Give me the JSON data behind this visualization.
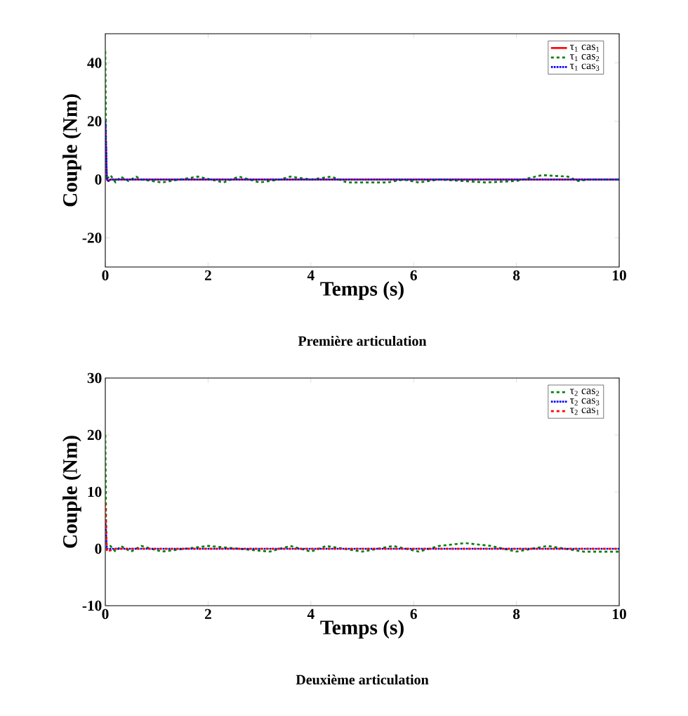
{
  "chart_data": [
    {
      "type": "line",
      "xlabel": "Temps (s)",
      "ylabel": "Couple (Nm)",
      "annotations": [
        "Première articulation"
      ],
      "xlim": [
        0,
        10
      ],
      "ylim": [
        -30,
        50
      ],
      "xticks": [
        0,
        2,
        4,
        6,
        8,
        10
      ],
      "yticks": [
        -20,
        0,
        20,
        40
      ],
      "legend": "top right",
      "grid": false,
      "series": [
        {
          "name": "τ$_{1}$ cas$_{1}$",
          "color": "#ff0000",
          "line_style": "solid",
          "x": [
            0,
            0.03,
            0.06,
            0.1,
            10
          ],
          "values": [
            20,
            0,
            -0.5,
            0,
            0
          ]
        },
        {
          "name": "τ$_{1}$ cas$_{2}$",
          "color": "#008000",
          "line_style": "dashed",
          "x": [
            0,
            0.02,
            0.1,
            0.2,
            0.3,
            0.45,
            0.6,
            0.7,
            1.1,
            1.8,
            2.3,
            2.6,
            3.0,
            3.4,
            3.6,
            4.0,
            4.4,
            4.7,
            5.5,
            5.8,
            6.1,
            6.5,
            7.4,
            8.0,
            8.5,
            9.0,
            9.2,
            9.4,
            10
          ],
          "values": [
            44,
            0,
            1.5,
            -1,
            1,
            -0.5,
            1,
            0,
            -1,
            1,
            -1,
            1,
            -1,
            0,
            1,
            0,
            1,
            -1,
            -1,
            0,
            -1,
            0,
            -1,
            -0.5,
            1.5,
            1,
            -0.5,
            0,
            0
          ]
        },
        {
          "name": "τ$_{1}$ cas$_{3}$",
          "color": "#0000ff",
          "line_style": "dotted",
          "x": [
            0,
            0.03,
            0.06,
            0.1,
            10
          ],
          "values": [
            20,
            0,
            -0.5,
            0,
            0
          ]
        }
      ]
    },
    {
      "type": "line",
      "xlabel": "Temps (s)",
      "ylabel": "Couple (Nm)",
      "annotations": [
        "Deuxième articulation"
      ],
      "xlim": [
        0,
        10
      ],
      "ylim": [
        -10,
        30
      ],
      "xticks": [
        0,
        2,
        4,
        6,
        8,
        10
      ],
      "yticks": [
        -10,
        0,
        10,
        20,
        30
      ],
      "legend": "top right",
      "grid": false,
      "series": [
        {
          "name": "τ$_{2}$ cas$_{2}$",
          "color": "#008000",
          "line_style": "dashed",
          "x": [
            0,
            0.02,
            0.1,
            0.2,
            0.3,
            0.5,
            0.7,
            1.1,
            2.0,
            3.2,
            3.6,
            4.0,
            4.3,
            5.0,
            5.6,
            6.1,
            6.5,
            7.0,
            7.5,
            8.0,
            8.6,
            9.3,
            9.8,
            10
          ],
          "values": [
            20,
            0,
            0.5,
            -0.5,
            0.5,
            -0.5,
            0.5,
            -0.5,
            0.5,
            -0.5,
            0.5,
            -0.5,
            0.5,
            -0.5,
            0.5,
            -0.5,
            0.5,
            1,
            0.5,
            -0.5,
            0.5,
            -0.5,
            -0.5,
            -0.5
          ]
        },
        {
          "name": "τ$_{2}$ cas$_{3}$",
          "color": "#0000ff",
          "line_style": "dotted",
          "x": [
            0,
            0.03,
            10
          ],
          "values": [
            5,
            0,
            0
          ]
        },
        {
          "name": "τ$_{2}$ cas$_{1}$",
          "color": "#ff0000",
          "line_style": "dashed",
          "x": [
            0,
            0.03,
            0.2,
            10
          ],
          "values": [
            8,
            -0.5,
            0,
            0
          ]
        }
      ]
    }
  ]
}
